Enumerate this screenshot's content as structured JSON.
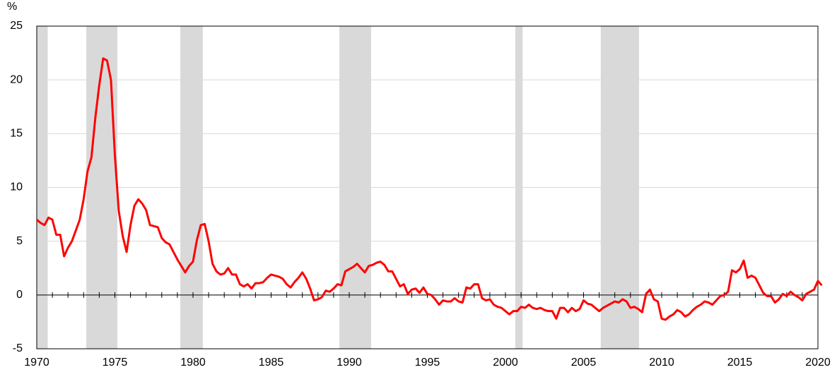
{
  "chart_data": {
    "type": "line",
    "y_label": "%",
    "color": "#ff0000",
    "shade_color": "#d9d9d9",
    "grid": true,
    "xlim": [
      1970,
      2020
    ],
    "xticks": [
      1970,
      1975,
      1980,
      1985,
      1990,
      1995,
      2000,
      2005,
      2010,
      2015,
      2020
    ],
    "xminorticks": [
      1970,
      1971,
      1972,
      1973,
      1974,
      1975,
      1976,
      1977,
      1978,
      1979,
      1980,
      1981,
      1982,
      1983,
      1984,
      1985,
      1986,
      1987,
      1988,
      1989,
      1990,
      1991,
      1992,
      1993,
      1994,
      1995,
      1996,
      1997,
      1998,
      1999,
      2000,
      2001,
      2002,
      2003,
      2004,
      2005,
      2006,
      2007,
      2008,
      2009,
      2010,
      2011,
      2012,
      2013,
      2014,
      2015,
      2016,
      2017,
      2018,
      2019,
      2020
    ],
    "ylim": [
      -5,
      25
    ],
    "yticks": [
      -5,
      0,
      5,
      10,
      15,
      20,
      25
    ],
    "shaded_periods": [
      [
        1970.0,
        1970.7
      ],
      [
        1973.17,
        1975.16
      ],
      [
        1979.19,
        1980.63
      ],
      [
        1989.37,
        1991.4
      ],
      [
        2000.63,
        2001.1
      ],
      [
        2006.1,
        2008.55
      ]
    ],
    "x": [
      1970.0,
      1970.25,
      1970.5,
      1970.75,
      1971.0,
      1971.25,
      1971.5,
      1971.75,
      1972.0,
      1972.25,
      1972.5,
      1972.75,
      1973.0,
      1973.25,
      1973.5,
      1973.75,
      1974.0,
      1974.25,
      1974.5,
      1974.75,
      1975.0,
      1975.25,
      1975.5,
      1975.75,
      1976.0,
      1976.25,
      1976.5,
      1976.75,
      1977.0,
      1977.25,
      1977.5,
      1977.75,
      1978.0,
      1978.25,
      1978.5,
      1978.75,
      1979.0,
      1979.25,
      1979.5,
      1979.75,
      1980.0,
      1980.25,
      1980.5,
      1980.75,
      1981.0,
      1981.25,
      1981.5,
      1981.75,
      1982.0,
      1982.25,
      1982.5,
      1982.75,
      1983.0,
      1983.25,
      1983.5,
      1983.75,
      1984.0,
      1984.25,
      1984.5,
      1984.75,
      1985.0,
      1985.25,
      1985.5,
      1985.75,
      1986.0,
      1986.25,
      1986.5,
      1986.75,
      1987.0,
      1987.25,
      1987.5,
      1987.75,
      1988.0,
      1988.25,
      1988.5,
      1988.75,
      1989.0,
      1989.25,
      1989.5,
      1989.75,
      1990.0,
      1990.25,
      1990.5,
      1990.75,
      1991.0,
      1991.25,
      1991.5,
      1991.75,
      1992.0,
      1992.25,
      1992.5,
      1992.75,
      1993.0,
      1993.25,
      1993.5,
      1993.75,
      1994.0,
      1994.25,
      1994.5,
      1994.75,
      1995.0,
      1995.25,
      1995.5,
      1995.75,
      1996.0,
      1996.25,
      1996.5,
      1996.75,
      1997.0,
      1997.25,
      1997.5,
      1997.75,
      1998.0,
      1998.25,
      1998.5,
      1998.75,
      1999.0,
      1999.25,
      1999.5,
      1999.75,
      2000.0,
      2000.25,
      2000.5,
      2000.75,
      2001.0,
      2001.25,
      2001.5,
      2001.75,
      2002.0,
      2002.25,
      2002.5,
      2002.75,
      2003.0,
      2003.25,
      2003.5,
      2003.75,
      2004.0,
      2004.25,
      2004.5,
      2004.75,
      2005.0,
      2005.25,
      2005.5,
      2005.75,
      2006.0,
      2006.25,
      2006.5,
      2006.75,
      2007.0,
      2007.25,
      2007.5,
      2007.75,
      2008.0,
      2008.25,
      2008.5,
      2008.75,
      2009.0,
      2009.25,
      2009.5,
      2009.75,
      2010.0,
      2010.25,
      2010.5,
      2010.75,
      2011.0,
      2011.25,
      2011.5,
      2011.75,
      2012.0,
      2012.25,
      2012.5,
      2012.75,
      2013.0,
      2013.25,
      2013.5,
      2013.75,
      2014.0,
      2014.25,
      2014.5,
      2014.75,
      2015.0,
      2015.25,
      2015.5,
      2015.75,
      2016.0,
      2016.25,
      2016.5,
      2016.75,
      2017.0,
      2017.25,
      2017.5,
      2017.75,
      2018.0,
      2018.25,
      2018.5,
      2018.75,
      2019.0,
      2019.25,
      2019.5,
      2019.75,
      2020.0,
      2020.25
    ],
    "values": [
      7.0,
      6.7,
      6.5,
      7.2,
      7.0,
      5.6,
      5.6,
      3.6,
      4.4,
      5.0,
      6.0,
      7.0,
      8.9,
      11.5,
      12.8,
      16.5,
      19.5,
      22.0,
      21.8,
      20.0,
      13.0,
      7.8,
      5.5,
      4.0,
      6.5,
      8.3,
      8.9,
      8.5,
      7.9,
      6.5,
      6.4,
      6.3,
      5.3,
      4.9,
      4.7,
      4.0,
      3.3,
      2.7,
      2.1,
      2.7,
      3.1,
      5.1,
      6.5,
      6.6,
      5.0,
      2.9,
      2.2,
      1.9,
      2.0,
      2.5,
      1.9,
      1.9,
      1.0,
      0.8,
      1.0,
      0.6,
      1.1,
      1.1,
      1.2,
      1.6,
      1.9,
      1.8,
      1.7,
      1.5,
      1.0,
      0.7,
      1.2,
      1.6,
      2.1,
      1.5,
      0.6,
      -0.5,
      -0.4,
      -0.2,
      0.4,
      0.3,
      0.6,
      1.0,
      0.9,
      2.2,
      2.4,
      2.6,
      2.9,
      2.5,
      2.1,
      2.7,
      2.8,
      3.0,
      3.1,
      2.8,
      2.2,
      2.2,
      1.5,
      0.8,
      1.0,
      0.1,
      0.5,
      0.6,
      0.2,
      0.7,
      0.1,
      0.0,
      -0.4,
      -0.9,
      -0.5,
      -0.6,
      -0.6,
      -0.3,
      -0.6,
      -0.7,
      0.7,
      0.6,
      1.0,
      1.0,
      -0.3,
      -0.5,
      -0.4,
      -0.9,
      -1.1,
      -1.2,
      -1.5,
      -1.8,
      -1.5,
      -1.5,
      -1.1,
      -1.2,
      -0.9,
      -1.2,
      -1.3,
      -1.2,
      -1.4,
      -1.5,
      -1.5,
      -2.2,
      -1.2,
      -1.2,
      -1.6,
      -1.2,
      -1.5,
      -1.3,
      -0.5,
      -0.8,
      -0.9,
      -1.2,
      -1.5,
      -1.2,
      -1.0,
      -0.8,
      -0.6,
      -0.7,
      -0.4,
      -0.6,
      -1.2,
      -1.1,
      -1.3,
      -1.6,
      0.1,
      0.5,
      -0.4,
      -0.6,
      -2.2,
      -2.3,
      -2.0,
      -1.8,
      -1.4,
      -1.6,
      -2.0,
      -1.8,
      -1.4,
      -1.1,
      -0.9,
      -0.6,
      -0.7,
      -0.9,
      -0.5,
      -0.1,
      0.0,
      0.3,
      2.3,
      2.1,
      2.4,
      3.2,
      1.6,
      1.8,
      1.6,
      0.9,
      0.2,
      -0.1,
      -0.1,
      -0.7,
      -0.4,
      0.1,
      -0.1,
      0.3,
      0.0,
      -0.2,
      -0.5,
      0.1,
      0.3,
      0.5,
      1.3,
      0.9
    ]
  }
}
